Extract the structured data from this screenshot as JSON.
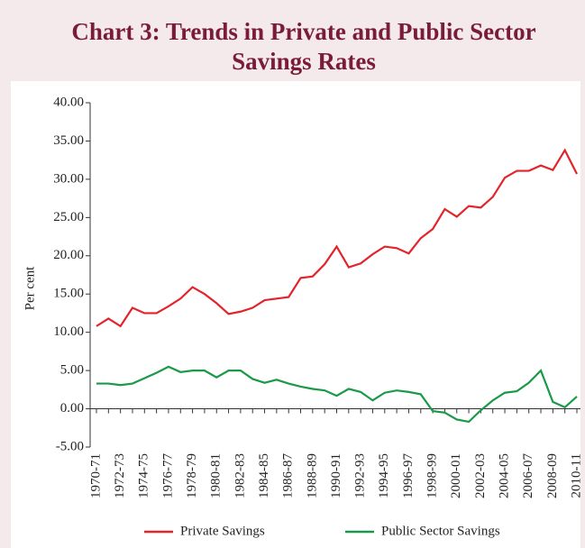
{
  "chart_data": {
    "type": "line",
    "title": "Chart 3: Trends in Private and Public Sector",
    "subtitle": "Savings Rates",
    "y_label": "Per cent",
    "categories": [
      "1970-71",
      null,
      "1972-73",
      null,
      "1974-75",
      null,
      "1976-77",
      null,
      "1978-79",
      null,
      "1980-81",
      null,
      "1982-83",
      null,
      "1984-85",
      null,
      "1986-87",
      null,
      "1988-89",
      null,
      "1990-91",
      null,
      "1992-93",
      null,
      "1994-95",
      null,
      "1996-97",
      null,
      "1998-99",
      null,
      "2000-01",
      null,
      "2002-03",
      null,
      "2004-05",
      null,
      "2006-07",
      null,
      "2008-09",
      null,
      "2010-11"
    ],
    "series": [
      {
        "name": "Private Savings",
        "color": "#e3242b",
        "values": [
          10.8,
          11.8,
          10.8,
          13.2,
          12.5,
          12.5,
          13.4,
          14.4,
          15.9,
          15.0,
          13.8,
          12.4,
          12.7,
          13.2,
          14.2,
          14.4,
          14.6,
          17.1,
          17.3,
          18.9,
          21.2,
          18.5,
          19.0,
          20.2,
          21.2,
          21.0,
          20.3,
          22.3,
          23.5,
          26.1,
          25.1,
          26.5,
          26.3,
          27.7,
          30.2,
          31.1,
          31.1,
          31.8,
          31.2,
          33.8,
          30.7
        ]
      },
      {
        "name": "Public Sector Savings",
        "color": "#1a9a48",
        "values": [
          3.3,
          3.3,
          3.1,
          3.3,
          4.0,
          4.7,
          5.5,
          4.8,
          5.0,
          5.0,
          4.1,
          5.0,
          5.0,
          3.9,
          3.4,
          3.8,
          3.3,
          2.9,
          2.6,
          2.4,
          1.7,
          2.6,
          2.2,
          1.1,
          2.1,
          2.4,
          2.2,
          1.9,
          -0.3,
          -0.5,
          -1.4,
          -1.7,
          -0.2,
          1.1,
          2.1,
          2.3,
          3.4,
          5.0,
          0.9,
          0.2,
          1.6
        ]
      }
    ],
    "ylim": [
      -5,
      40
    ],
    "yticks": [
      {
        "value": -5,
        "label": "-5.00"
      },
      {
        "value": 0,
        "label": "0.00"
      },
      {
        "value": 5,
        "label": "5.00"
      },
      {
        "value": 10,
        "label": "10.00"
      },
      {
        "value": 15,
        "label": "15.00"
      },
      {
        "value": 20,
        "label": "20.00"
      },
      {
        "value": 25,
        "label": "25.00"
      },
      {
        "value": 30,
        "label": "30.00"
      },
      {
        "value": 35,
        "label": "35.00"
      },
      {
        "value": 40,
        "label": "40.00"
      }
    ],
    "grid": false,
    "legend": "bottom"
  }
}
